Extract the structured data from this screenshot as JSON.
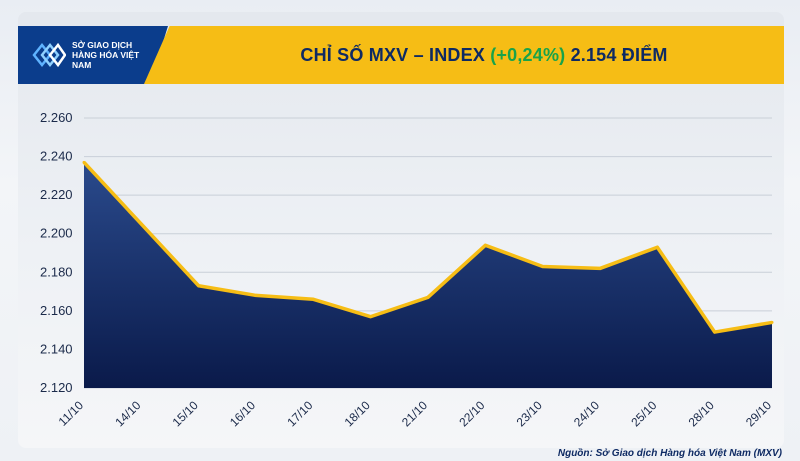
{
  "header": {
    "logo_label": "SỞ GIAO DỊCH HÀNG HÓA VIỆT NAM",
    "title_prefix": "CHỈ SỐ MXV – INDEX",
    "title_change": "(+0,24%)",
    "title_value": "2.154 ĐIỂM"
  },
  "source": "Nguồn: Sở Giao dịch Hàng hóa Việt Nam (MXV)",
  "colors": {
    "area_top": "#1e3a78",
    "area_bottom": "#0a1a4a",
    "line": "#f6bd15",
    "title_band": "#f6bd15",
    "logo_bg": "#0b3d8c",
    "change_green": "#19a34a"
  },
  "chart_data": {
    "type": "area",
    "title": "CHỈ SỐ MXV – INDEX (+0,24%) 2.154 ĐIỂM",
    "categories": [
      "11/10",
      "14/10",
      "15/10",
      "16/10",
      "17/10",
      "18/10",
      "21/10",
      "22/10",
      "23/10",
      "24/10",
      "25/10",
      "28/10",
      "29/10"
    ],
    "values": [
      2237,
      2205,
      2173,
      2168,
      2166,
      2157,
      2167,
      2194,
      2183,
      2182,
      2193,
      2149,
      2154
    ],
    "ylim": [
      2120,
      2260
    ],
    "yticks": [
      2120,
      2140,
      2160,
      2180,
      2200,
      2220,
      2240,
      2260
    ],
    "ytick_labels": [
      "2.120",
      "2.140",
      "2.160",
      "2.180",
      "2.200",
      "2.220",
      "2.240",
      "2.260"
    ],
    "xlabel": "",
    "ylabel": "",
    "grid": true
  }
}
